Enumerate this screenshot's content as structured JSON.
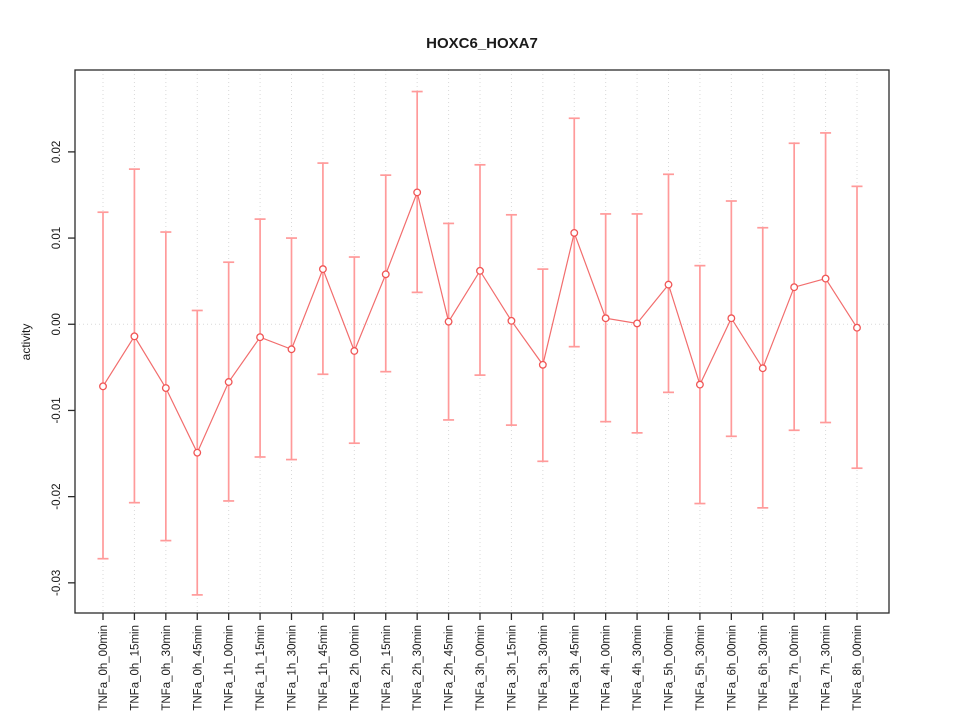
{
  "chart_data": {
    "type": "scatter",
    "subtype": "points-with-error-bars",
    "title": "HOXC6_HOXA7",
    "xlabel": "",
    "ylabel": "activity",
    "categories": [
      "TNFa_0h_00min",
      "TNFa_0h_15min",
      "TNFa_0h_30min",
      "TNFa_0h_45min",
      "TNFa_1h_00min",
      "TNFa_1h_15min",
      "TNFa_1h_30min",
      "TNFa_1h_45min",
      "TNFa_2h_00min",
      "TNFa_2h_15min",
      "TNFa_2h_30min",
      "TNFa_2h_45min",
      "TNFa_3h_00min",
      "TNFa_3h_15min",
      "TNFa_3h_30min",
      "TNFa_3h_45min",
      "TNFa_4h_00min",
      "TNFa_4h_30min",
      "TNFa_5h_00min",
      "TNFa_5h_30min",
      "TNFa_6h_00min",
      "TNFa_6h_30min",
      "TNFa_7h_00min",
      "TNFa_7h_30min",
      "TNFa_8h_00min"
    ],
    "series": [
      {
        "name": "activity",
        "values": [
          -0.0072,
          -0.0014,
          -0.0074,
          -0.0149,
          -0.0067,
          -0.0015,
          -0.0029,
          0.0064,
          -0.0031,
          0.0058,
          0.0153,
          0.0003,
          0.0062,
          0.0004,
          -0.0047,
          0.0106,
          0.0007,
          0.0001,
          0.0046,
          -0.007,
          0.0007,
          -0.0051,
          0.0043,
          0.0053,
          -0.0004
        ],
        "err_high": [
          0.013,
          0.018,
          0.0107,
          0.0016,
          0.0072,
          0.0122,
          0.01,
          0.0187,
          0.0078,
          0.0173,
          0.027,
          0.0117,
          0.0185,
          0.0127,
          0.0064,
          0.0239,
          0.0128,
          0.0128,
          0.0174,
          0.0068,
          0.0143,
          0.0112,
          0.021,
          0.0222,
          0.016
        ],
        "err_low": [
          -0.0272,
          -0.0207,
          -0.0251,
          -0.0314,
          -0.0205,
          -0.0154,
          -0.0157,
          -0.0058,
          -0.0138,
          -0.0055,
          0.0037,
          -0.0111,
          -0.0059,
          -0.0117,
          -0.0159,
          -0.0026,
          -0.0113,
          -0.0126,
          -0.0079,
          -0.0208,
          -0.013,
          -0.0213,
          -0.0123,
          -0.0114,
          -0.0167
        ]
      }
    ],
    "ytick_labels": [
      "0.02",
      "0.01",
      "0.00",
      "-0.01",
      "-0.02",
      "-0.03"
    ],
    "ytick_values": [
      0.02,
      0.01,
      0.0,
      -0.01,
      -0.02,
      -0.03
    ],
    "ylim": [
      -0.0335,
      0.0295
    ],
    "grid": {
      "vertical": "dotted line at every category",
      "horizontal": "dotted line at zero only",
      "color": "#d9d9d9"
    },
    "legend": "none",
    "colors": {
      "error_bar": "#ff9a9a",
      "line": "#f26d6d",
      "marker": "#f05555",
      "marker_fill": "#ffffff",
      "axis": "#2b2b2b",
      "text": "#1a1a1a",
      "background": "#ffffff"
    }
  }
}
